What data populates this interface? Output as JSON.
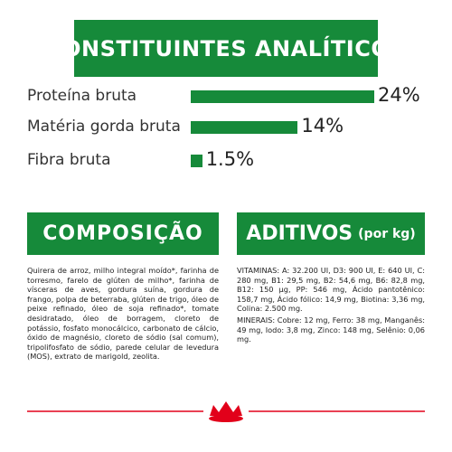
{
  "chart_data": {
    "type": "bar",
    "orientation": "horizontal",
    "title": "CONSTITUINTES ANALÍTICOS",
    "categories": [
      "Proteína bruta",
      "Matéria gorda bruta",
      "Fibra bruta"
    ],
    "values": [
      24,
      14,
      1.5
    ],
    "value_labels": [
      "24%",
      "14%",
      "1.5%"
    ],
    "color": "#168a3a"
  },
  "composition": {
    "title": "COMPOSIÇÃO",
    "text": "Quirera de arroz, milho integral moído*, farinha de torresmo, farelo de glúten de milho*, farinha de vísceras de aves, gordura suína, gordura de frango, polpa de beterraba, glúten de trigo, óleo de peixe refinado, óleo de soja refinado*, tomate desidratado, óleo de borragem, cloreto de potássio, fosfato monocálcico, carbonato de cálcio, óxido de magnésio, cloreto de sódio (sal comum), tripolifosfato de sódio, parede celular de levedura (MOS), extrato de marigold, zeolita."
  },
  "additives": {
    "title": "ADITIVOS",
    "unit": "(por kg)",
    "paragraphs": [
      "VITAMINAS: A: 32.200 UI, D3: 900 UI, E: 640 UI, C: 280 mg, B1: 29,5 mg, B2: 54,6 mg, B6: 82,8 mg, B12: 150 µg, PP: 546 mg, Ácido pantotênico: 158,7 mg, Ácido fólico: 14,9 mg, Biotina: 3,36 mg, Colina: 2.500 mg.",
      "MINERAIS: Cobre: 12 mg, Ferro: 38 mg, Manganês: 49 mg, Iodo: 3,8 mg, Zinco: 148 mg, Selênio: 0,06 mg."
    ]
  }
}
